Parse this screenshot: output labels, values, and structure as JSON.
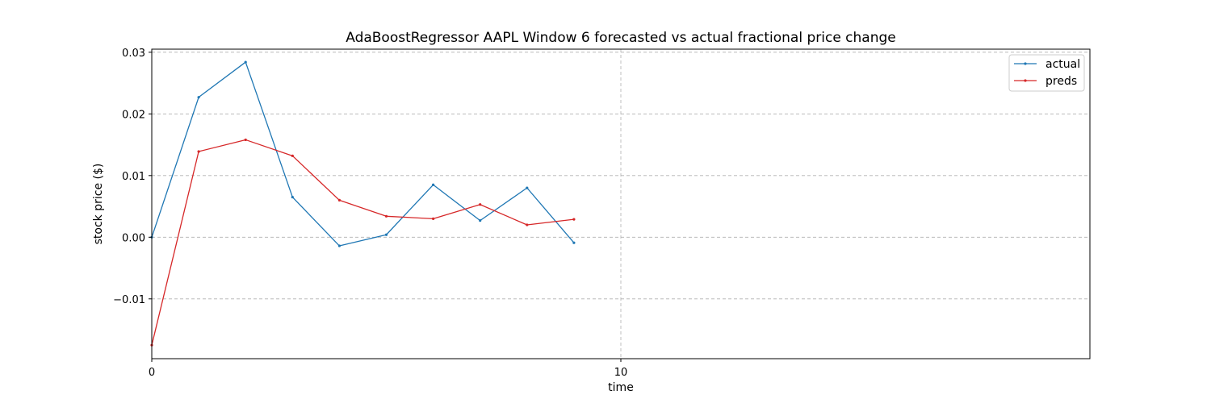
{
  "chart_data": {
    "type": "line",
    "title": "AdaBoostRegressor AAPL Window 6 forecasted vs actual fractional price change",
    "xlabel": "time",
    "ylabel": "stock price ($)",
    "xlim": [
      0,
      20
    ],
    "ylim": [
      -0.0197,
      0.0305
    ],
    "xticks": [
      0,
      10
    ],
    "xtick_labels": [
      "0",
      "10"
    ],
    "yticks": [
      -0.01,
      0.0,
      0.01,
      0.02,
      0.03
    ],
    "ytick_labels": [
      "−0.01",
      "0.00",
      "0.01",
      "0.02",
      "0.03"
    ],
    "grid": true,
    "legend_position": "top-right",
    "x": [
      0,
      1,
      2,
      3,
      4,
      5,
      6,
      7,
      8,
      9
    ],
    "series": [
      {
        "name": "actual",
        "color": "#1f77b4",
        "values": [
          0.0,
          0.0227,
          0.0284,
          0.0065,
          -0.0014,
          0.0004,
          0.0085,
          0.0027,
          0.008,
          -0.0009
        ]
      },
      {
        "name": "preds",
        "color": "#d62728",
        "values": [
          -0.0175,
          0.0139,
          0.0158,
          0.0132,
          0.006,
          0.0034,
          0.003,
          0.0053,
          0.002,
          0.0029
        ]
      }
    ]
  }
}
